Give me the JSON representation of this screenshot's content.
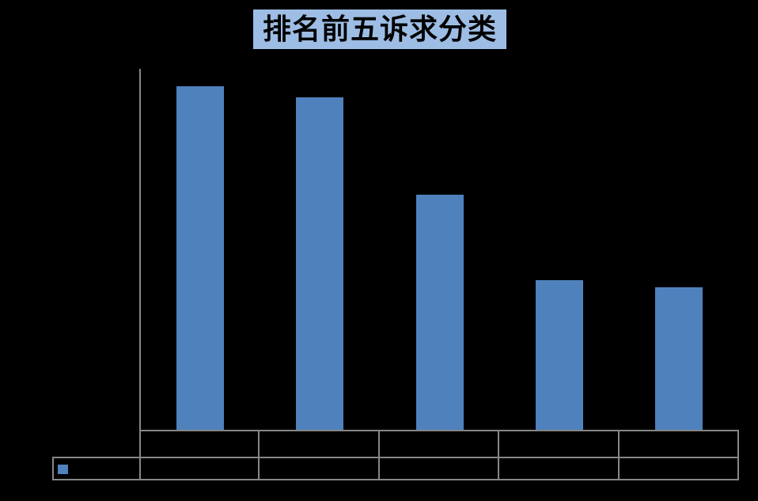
{
  "colors": {
    "background": "#000000",
    "bar": "#4F81BD",
    "title_bg": "#9DBDE4",
    "title_text": "#000000",
    "grid": "#868686"
  },
  "chart_data": {
    "type": "bar",
    "title": "排名前五诉求分类",
    "categories": [
      "",
      "",
      "",
      "",
      ""
    ],
    "series": [
      {
        "name": "",
        "values": [
          434,
          420,
          297,
          189,
          180
        ]
      }
    ],
    "xlabel": "",
    "ylabel": "",
    "ylim": [
      0,
      456
    ],
    "grid": false,
    "value_note": "no axis ticks or data labels visible; values estimated as bar pixel heights (baseline y=543, plot top y=87)",
    "legend": {
      "position": "bottom-left",
      "label": "",
      "swatch_color": "#4F81BD"
    },
    "data_table": {
      "shown": true,
      "rows": 2,
      "visible_text": false
    }
  }
}
